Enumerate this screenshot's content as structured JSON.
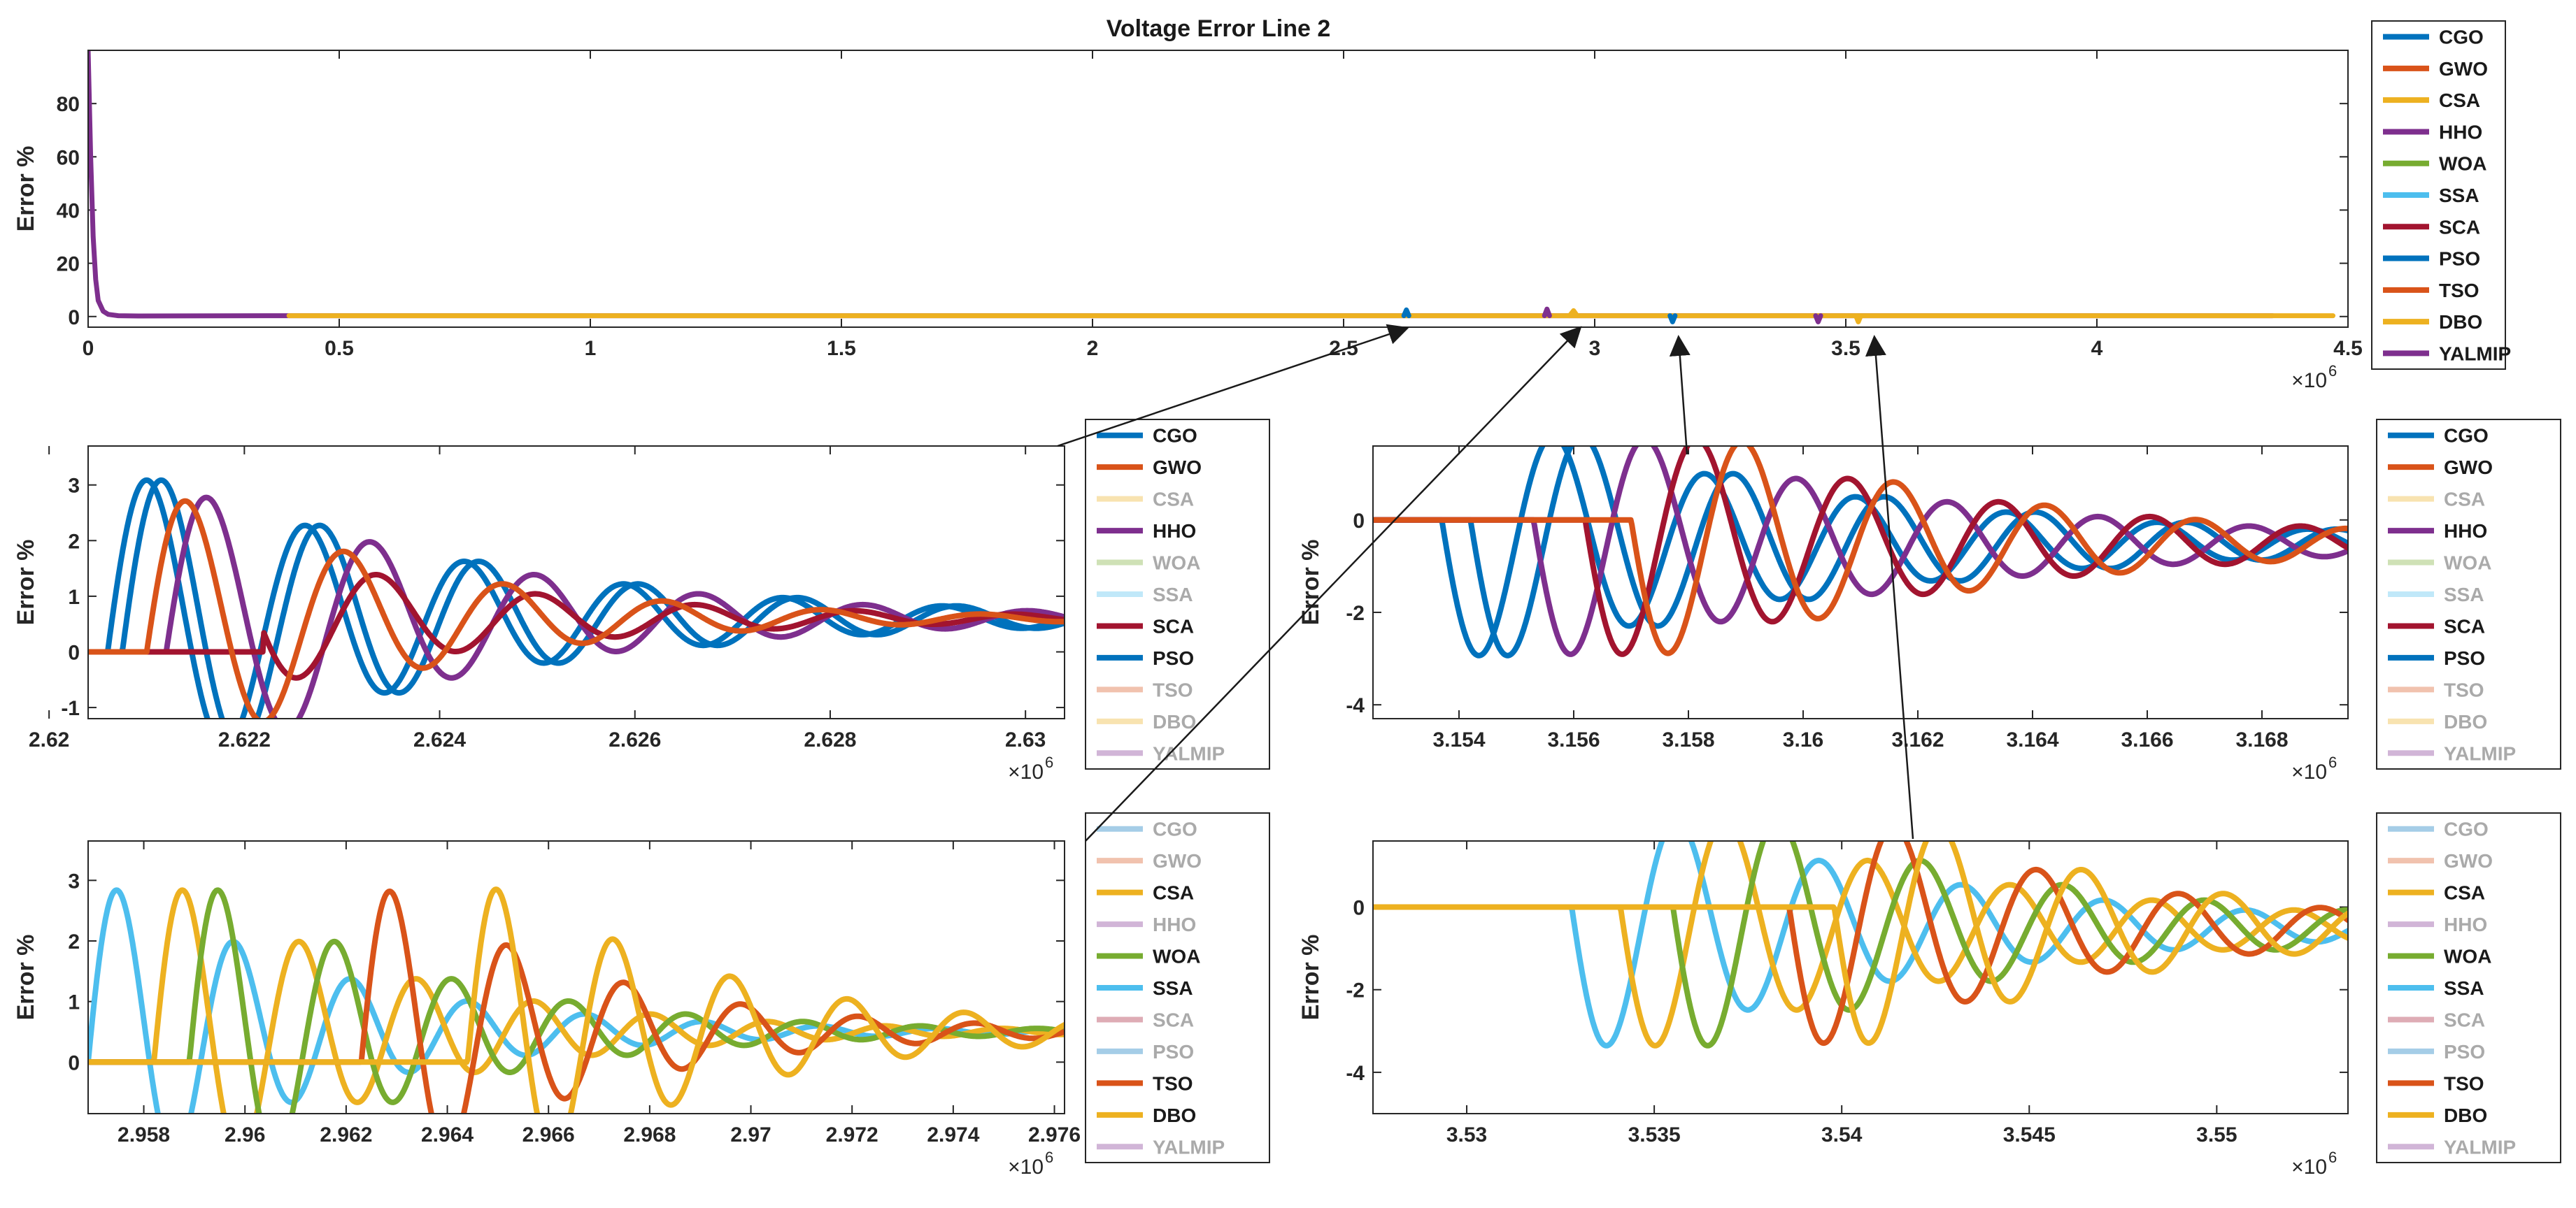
{
  "figure_title": "Voltage Error Line 2",
  "colors": {
    "CGO": "#0072BD",
    "GWO": "#D95319",
    "CSA": "#EDB120",
    "HHO": "#7E2F8E",
    "WOA": "#77AC30",
    "SSA": "#4DBEEE",
    "SCA": "#A2142F",
    "PSO": "#0072BD",
    "TSO": "#D95319",
    "DBO": "#EDB120",
    "YALMIP": "#7E2F8E"
  },
  "chart_data": [
    {
      "id": "main",
      "type": "line",
      "title": "Voltage Error Line 2",
      "xlabel": "",
      "ylabel": "Error %",
      "xlim": [
        0,
        4.5
      ],
      "ylim": [
        -4,
        100
      ],
      "xticks": [
        0,
        0.5,
        1,
        1.5,
        2,
        2.5,
        3,
        3.5,
        4,
        4.5
      ],
      "xtick_labels": [
        "0",
        "0.5",
        "1",
        "1.5",
        "2",
        "2.5",
        "3",
        "3.5",
        "4",
        "4.5"
      ],
      "yticks": [
        0,
        20,
        40,
        60,
        80
      ],
      "ytick_labels": [
        "0",
        "20",
        "40",
        "60",
        "80"
      ],
      "exponent": "6",
      "legend": [
        "CGO",
        "GWO",
        "CSA",
        "HHO",
        "WOA",
        "SSA",
        "SCA",
        "PSO",
        "TSO",
        "DBO",
        "YALMIP"
      ],
      "dimmed": [],
      "series": [
        {
          "name": "YALMIP",
          "x": [
            0,
            0.005,
            0.01,
            0.015,
            0.02,
            0.03,
            0.04,
            0.06,
            0.1,
            0.4,
            4.35
          ],
          "y": [
            100,
            60,
            30,
            14,
            6,
            2,
            0.8,
            0.3,
            0.2,
            0.3,
            0.3
          ]
        },
        {
          "name": "DBO",
          "x": [
            0.4,
            4.47
          ],
          "y": [
            0.3,
            0.3
          ]
        },
        {
          "name": "CGO",
          "x": [
            2.62,
            2.625,
            2.63
          ],
          "y": [
            0.3,
            2.5,
            0.3
          ]
        },
        {
          "name": "HHO",
          "x": [
            2.9,
            2.905,
            2.91
          ],
          "y": [
            0.3,
            2.8,
            0.3
          ]
        },
        {
          "name": "CSA",
          "x": [
            2.95,
            2.958,
            2.965
          ],
          "y": [
            0.3,
            2.2,
            0.3
          ]
        },
        {
          "name": "PSO",
          "x": [
            3.15,
            3.155,
            3.16
          ],
          "y": [
            0.3,
            -2,
            0.3
          ]
        },
        {
          "name": "HHO",
          "x": [
            3.44,
            3.445,
            3.45
          ],
          "y": [
            0.3,
            -2,
            0.3
          ]
        },
        {
          "name": "CSA",
          "x": [
            3.52,
            3.525,
            3.53
          ],
          "y": [
            0.3,
            -2,
            0.3
          ]
        }
      ]
    },
    {
      "id": "z1",
      "type": "line",
      "xlabel": "",
      "ylabel": "Error %",
      "xlim": [
        2.6204,
        2.6304
      ],
      "ylim": [
        -1.2,
        3.7
      ],
      "xticks": [
        2.62,
        2.622,
        2.624,
        2.626,
        2.628,
        2.63
      ],
      "xtick_labels": [
        "2.62",
        "2.622",
        "2.624",
        "2.626",
        "2.628",
        "2.63"
      ],
      "yticks": [
        -1,
        0,
        1,
        2,
        3
      ],
      "ytick_labels": [
        "-1",
        "0",
        "1",
        "2",
        "3"
      ],
      "exponent": "6",
      "legend": [
        "CGO",
        "GWO",
        "CSA",
        "HHO",
        "WOA",
        "SSA",
        "SCA",
        "PSO",
        "TSO",
        "DBO",
        "YALMIP"
      ],
      "dimmed": [
        "CSA",
        "WOA",
        "SSA",
        "TSO",
        "DBO",
        "YALMIP"
      ],
      "series": [
        {
          "name": "CGO",
          "t0": 2.62075,
          "amp": 3.2,
          "dec": 0.48,
          "per": 0.00155,
          "base": 0.6
        },
        {
          "name": "PSO",
          "t0": 2.6206,
          "amp": 3.2,
          "dec": 0.48,
          "per": 0.00155,
          "base": 0.6
        },
        {
          "name": "HHO",
          "t0": 2.6212,
          "amp": 2.9,
          "dec": 0.55,
          "per": 0.0016,
          "base": 0.6
        },
        {
          "name": "SCA",
          "t0": 2.6197,
          "amp": 2.9,
          "dec": 0.55,
          "per": 0.00155,
          "base": 0.6,
          "start": 2.6222
        },
        {
          "name": "GWO",
          "t0": 2.621,
          "amp": 2.9,
          "dec": 0.65,
          "per": 0.00155,
          "base": 0.6,
          "start": 2.621
        }
      ]
    },
    {
      "id": "z2",
      "type": "line",
      "xlabel": "",
      "ylabel": "Error %",
      "xlim": [
        3.1525,
        3.1695
      ],
      "ylim": [
        -4.3,
        1.6
      ],
      "xticks": [
        3.154,
        3.156,
        3.158,
        3.16,
        3.162,
        3.164,
        3.166,
        3.168
      ],
      "xtick_labels": [
        "3.154",
        "3.156",
        "3.158",
        "3.16",
        "3.162",
        "3.164",
        "3.166",
        "3.168"
      ],
      "yticks": [
        -4,
        -2,
        0
      ],
      "ytick_labels": [
        "-4",
        "-2",
        "0"
      ],
      "exponent": "6",
      "legend": [
        "CGO",
        "GWO",
        "CSA",
        "HHO",
        "WOA",
        "SSA",
        "SCA",
        "PSO",
        "TSO",
        "DBO",
        "YALMIP"
      ],
      "dimmed": [
        "CSA",
        "WOA",
        "SSA",
        "TSO",
        "DBO",
        "YALMIP"
      ],
      "series": [
        {
          "name": "CGO",
          "t0": 3.1542,
          "amp": -3.0,
          "dec": 0.38,
          "per": 0.0025,
          "base": -0.5
        },
        {
          "name": "PSO",
          "t0": 3.1537,
          "amp": -3.0,
          "dec": 0.38,
          "per": 0.0025,
          "base": -0.5
        },
        {
          "name": "HHO",
          "t0": 3.1553,
          "amp": -3.0,
          "dec": 0.42,
          "per": 0.0025,
          "base": -0.5
        },
        {
          "name": "SCA",
          "t0": 3.1562,
          "amp": -3.0,
          "dec": 0.42,
          "per": 0.0025,
          "base": -0.5
        },
        {
          "name": "GWO",
          "t0": 3.157,
          "amp": -3.0,
          "dec": 0.45,
          "per": 0.0025,
          "base": -0.5
        }
      ]
    },
    {
      "id": "z3",
      "type": "line",
      "xlabel": "",
      "ylabel": "Error %",
      "xlim": [
        2.9569,
        2.9762
      ],
      "ylim": [
        -0.85,
        3.65
      ],
      "xticks": [
        2.958,
        2.96,
        2.962,
        2.964,
        2.966,
        2.968,
        2.97,
        2.972,
        2.974,
        2.976
      ],
      "xtick_labels": [
        "2.958",
        "2.96",
        "2.962",
        "2.964",
        "2.966",
        "2.968",
        "2.97",
        "2.972",
        "2.974",
        "2.976"
      ],
      "yticks": [
        0,
        1,
        2,
        3
      ],
      "ytick_labels": [
        "0",
        "1",
        "2",
        "3"
      ],
      "exponent": "6",
      "legend": [
        "CGO",
        "GWO",
        "CSA",
        "HHO",
        "WOA",
        "SSA",
        "SCA",
        "PSO",
        "TSO",
        "DBO",
        "YALMIP"
      ],
      "dimmed": [
        "CGO",
        "GWO",
        "HHO",
        "SCA",
        "PSO",
        "YALMIP"
      ],
      "series": [
        {
          "name": "SSA",
          "t0": 2.9569,
          "amp": 3.0,
          "dec": 0.52,
          "per": 0.0022,
          "base": 0.5
        },
        {
          "name": "CSA",
          "t0": 2.9582,
          "amp": 3.0,
          "dec": 0.52,
          "per": 0.0022,
          "base": 0.5
        },
        {
          "name": "WOA",
          "t0": 2.9589,
          "amp": 3.0,
          "dec": 0.52,
          "per": 0.0022,
          "base": 0.5
        },
        {
          "name": "TSO",
          "t0": 2.9623,
          "amp": 3.0,
          "dec": 0.55,
          "per": 0.0022,
          "base": 0.5
        },
        {
          "name": "DBO",
          "t0": 2.9644,
          "amp": 3.0,
          "dec": 0.5,
          "per": 0.0022,
          "base": 0.5
        }
      ]
    },
    {
      "id": "z4",
      "type": "line",
      "xlabel": "",
      "ylabel": "Error %",
      "xlim": [
        3.5275,
        3.5535
      ],
      "ylim": [
        -5.0,
        1.6
      ],
      "xticks": [
        3.53,
        3.535,
        3.54,
        3.545,
        3.55
      ],
      "xtick_labels": [
        "3.53",
        "3.535",
        "3.54",
        "3.545",
        "3.55"
      ],
      "yticks": [
        -4,
        -2,
        0
      ],
      "ytick_labels": [
        "-4",
        "-2",
        "0"
      ],
      "exponent": "6",
      "legend": [
        "CGO",
        "GWO",
        "CSA",
        "HHO",
        "WOA",
        "SSA",
        "SCA",
        "PSO",
        "TSO",
        "DBO",
        "YALMIP"
      ],
      "dimmed": [
        "CGO",
        "GWO",
        "HHO",
        "SCA",
        "PSO",
        "YALMIP"
      ],
      "series": [
        {
          "name": "SSA",
          "t0": 3.5328,
          "amp": -3.5,
          "dec": 0.42,
          "per": 0.0036,
          "base": -0.5
        },
        {
          "name": "CSA",
          "t0": 3.5341,
          "amp": -3.5,
          "dec": 0.42,
          "per": 0.0036,
          "base": -0.5
        },
        {
          "name": "WOA",
          "t0": 3.5355,
          "amp": -3.5,
          "dec": 0.42,
          "per": 0.0036,
          "base": -0.5
        },
        {
          "name": "TSO",
          "t0": 3.5386,
          "amp": -3.5,
          "dec": 0.5,
          "per": 0.0036,
          "base": -0.5
        },
        {
          "name": "DBO",
          "t0": 3.5398,
          "amp": -3.5,
          "dec": 0.5,
          "per": 0.0036,
          "base": -0.5
        }
      ]
    }
  ]
}
